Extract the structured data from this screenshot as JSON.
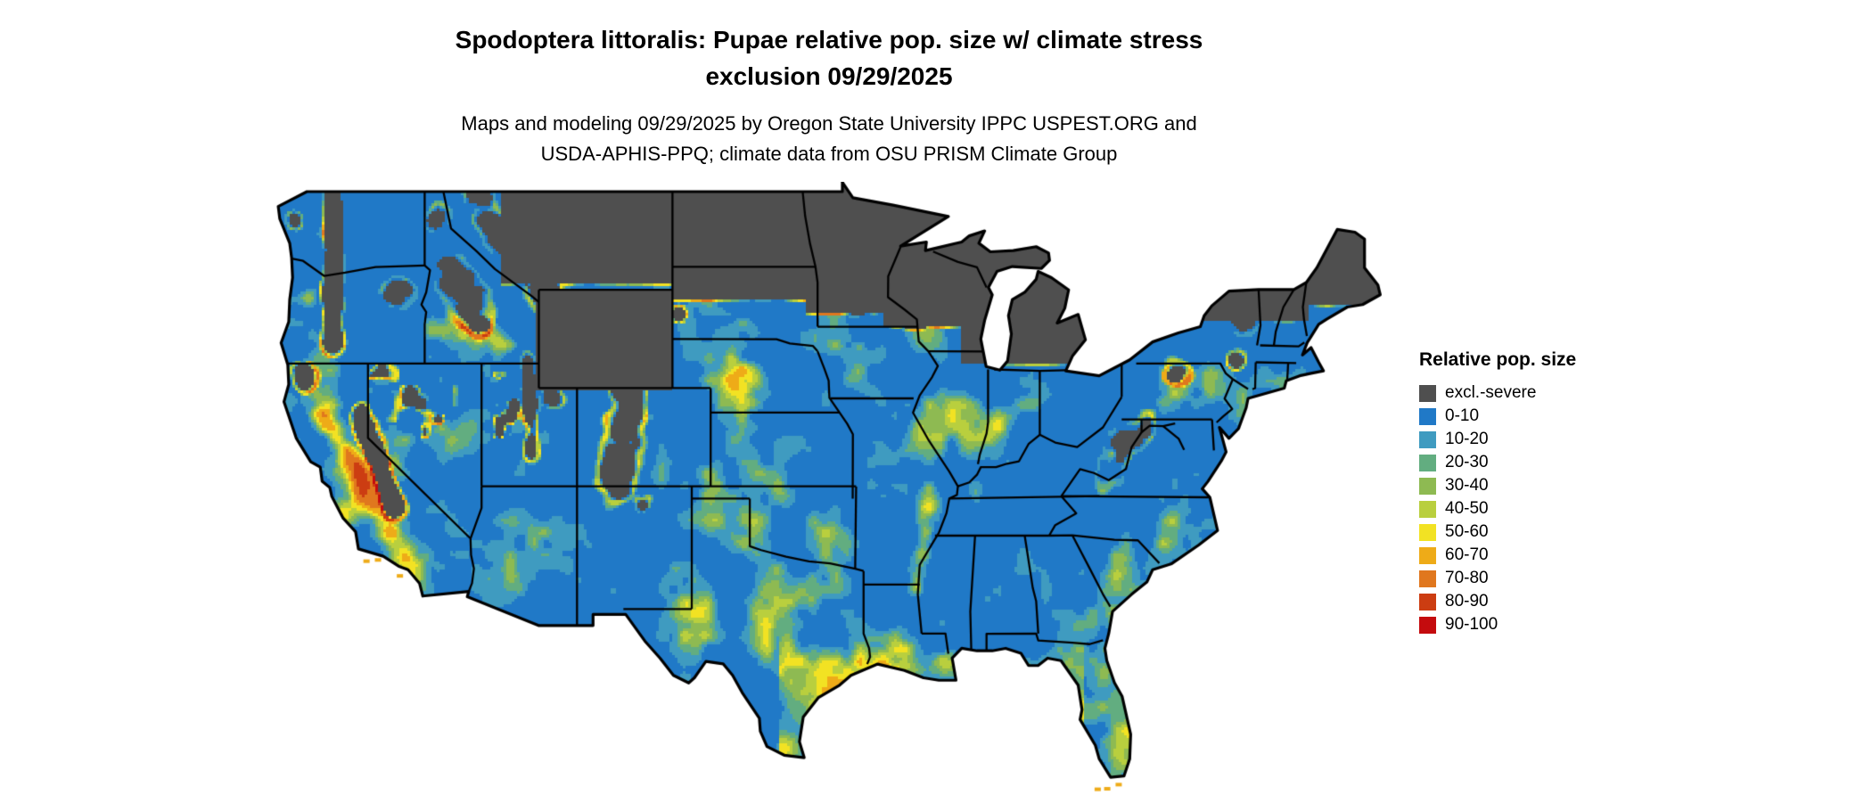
{
  "header": {
    "title_line1": "Spodoptera littoralis: Pupae relative pop. size w/ climate stress",
    "title_line2": "exclusion 09/29/2025",
    "subtitle_line1": "Maps and modeling 09/29/2025 by Oregon State University IPPC USPEST.ORG and",
    "subtitle_line2": "USDA-APHIS-PPQ; climate data from OSU PRISM Climate Group"
  },
  "legend": {
    "title": "Relative pop. size",
    "entries": [
      {
        "label": "excl.-severe",
        "color": "#4f4f4f"
      },
      {
        "label": "0-10",
        "color": "#2079c7"
      },
      {
        "label": "10-20",
        "color": "#3f9bc0"
      },
      {
        "label": "20-30",
        "color": "#62ad80"
      },
      {
        "label": "30-40",
        "color": "#8eba52"
      },
      {
        "label": "40-50",
        "color": "#b9cf3e"
      },
      {
        "label": "50-60",
        "color": "#f2e223"
      },
      {
        "label": "60-70",
        "color": "#eeab18"
      },
      {
        "label": "70-80",
        "color": "#e0771e"
      },
      {
        "label": "80-90",
        "color": "#cc3d12"
      },
      {
        "label": "90-100",
        "color": "#c40b0e"
      }
    ]
  },
  "map": {
    "region": "Continental United States",
    "kind": "raster class map with state boundaries"
  },
  "chart_data": {
    "type": "heatmap",
    "title": "Spodoptera littoralis: Pupae relative pop. size w/ climate stress exclusion 09/29/2025",
    "legend_title": "Relative pop. size",
    "classes": [
      "excl.-severe",
      "0-10",
      "10-20",
      "20-30",
      "30-40",
      "40-50",
      "50-60",
      "60-70",
      "70-80",
      "80-90",
      "90-100"
    ],
    "class_colors": [
      "#4f4f4f",
      "#2079c7",
      "#3f9bc0",
      "#62ad80",
      "#8eba52",
      "#b9cf3e",
      "#f2e223",
      "#eeab18",
      "#e0771e",
      "#cc3d12",
      "#c40b0e"
    ]
  }
}
